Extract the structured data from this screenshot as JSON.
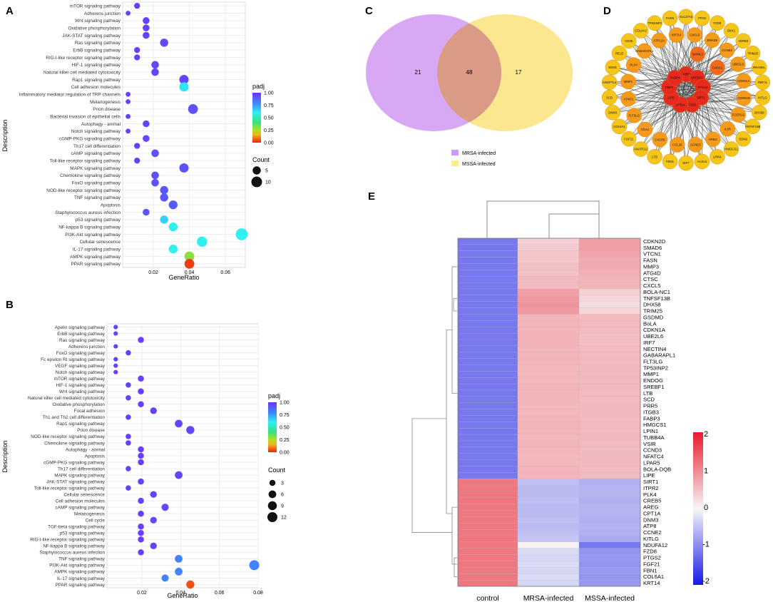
{
  "panel_labels": [
    "A",
    "B",
    "C",
    "D",
    "E"
  ],
  "legend_text": {
    "padj": "padj",
    "count": "Count"
  },
  "chart_data": [
    {
      "id": "A",
      "type": "scatter",
      "xlabel": "GeneRatio",
      "ylabel": "Description",
      "xlim": [
        0.003,
        0.071
      ],
      "xticks": [
        0.02,
        0.04,
        0.06
      ],
      "xtick_labels": [
        "0.02",
        "0.04",
        "0.06"
      ],
      "color_ticks": [
        "1.00",
        "0.75",
        "0.50",
        "0.25",
        "0.00"
      ],
      "count_ticks": [
        "5",
        "10"
      ],
      "count_values": [
        5,
        10
      ],
      "size_range": [
        1,
        13
      ],
      "categories": [
        "mTOR signaling pathway",
        "Adherens junction",
        "Wnt signaling pathway",
        "Oxidative phosphorylation",
        "JAK-STAT signaling pathway",
        "Ras signaling pathway",
        "ErbB signaling pathway",
        "RIG-I-like receptor signaling pathway",
        "HIF-1 signaling pathway",
        "Natural killer cell mediated cytotoxicity",
        "Rap1 signaling pathway",
        "Cell adhesion molecules",
        "Inflammatory mediator regulation of TRP channels",
        "Melanogenesis",
        "Prion disease",
        "Bacterial invasion of epithelial cells",
        "Autophagy - animal",
        "Notch signaling pathway",
        "cGMP-PKG signaling pathway",
        "Th17 cell differentiation",
        "cAMP signaling pathway",
        "Toll-like receptor signaling pathway",
        "MAPK signaling pathway",
        "Chemokine signaling pathway",
        "FoxO signaling pathway",
        "NOD-like receptor signaling pathway",
        "TNF signaling pathway",
        "Apoptosis",
        "Staphylococcus aureus infection",
        "p53 signaling pathway",
        "NF-kappa B signaling pathway",
        "PI3K-Akt signaling pathway",
        "Cellular senescence",
        "IL-17 signaling pathway",
        "AMPK signaling pathway",
        "PPAR signaling pathway"
      ],
      "gene_ratio": [
        0.011,
        0.006,
        0.016,
        0.016,
        0.016,
        0.026,
        0.011,
        0.011,
        0.021,
        0.021,
        0.037,
        0.037,
        0.006,
        0.006,
        0.042,
        0.006,
        0.016,
        0.006,
        0.016,
        0.011,
        0.021,
        0.011,
        0.037,
        0.021,
        0.021,
        0.026,
        0.026,
        0.031,
        0.016,
        0.026,
        0.031,
        0.069,
        0.047,
        0.031,
        0.04,
        0.04
      ],
      "count": [
        2,
        1,
        3,
        3,
        3,
        5,
        2,
        2,
        4,
        4,
        7,
        7,
        1,
        1,
        8,
        1,
        3,
        1,
        3,
        2,
        4,
        2,
        7,
        4,
        4,
        5,
        5,
        6,
        3,
        5,
        6,
        13,
        9,
        6,
        8,
        8
      ],
      "padj": [
        0.97,
        0.97,
        0.97,
        0.97,
        0.97,
        0.95,
        0.97,
        0.97,
        0.95,
        0.95,
        0.95,
        0.62,
        0.97,
        0.97,
        0.92,
        0.97,
        0.95,
        0.97,
        0.95,
        0.97,
        0.93,
        0.97,
        0.92,
        0.93,
        0.93,
        0.91,
        0.91,
        0.9,
        0.92,
        0.65,
        0.6,
        0.6,
        0.6,
        0.6,
        0.3,
        0.03
      ]
    },
    {
      "id": "B",
      "type": "scatter",
      "xlabel": "GeneRatio",
      "ylabel": "Description",
      "xlim": [
        0.002,
        0.08
      ],
      "xticks": [
        0.02,
        0.04,
        0.06,
        0.08
      ],
      "xtick_labels": [
        "0.02",
        "0.04",
        "0.06",
        "0.08"
      ],
      "color_ticks": [
        "1.00",
        "0.75",
        "0.50",
        "0.25",
        "0.00"
      ],
      "count_ticks": [
        "3",
        "6",
        "9",
        "12"
      ],
      "count_values": [
        3,
        6,
        9,
        12
      ],
      "size_range": [
        1,
        12
      ],
      "categories": [
        "Apelin signaling pathway",
        "ErbB signaling pathway",
        "Ras signaling pathway",
        "Adherens junction",
        "FoxO signaling pathway",
        "Fc epsilon RI signaling pathway",
        "VEGF signaling pathway",
        "Notch signaling pathway",
        "mTOR signaling pathway",
        "HIF-1 signaling pathway",
        "Wnt signaling pathway",
        "Natural killer cell mediated cytotoxicity",
        "Oxidative phosphorylation",
        "Focal adhesion",
        "Th1 and Th2 cell differentiation",
        "Rap1 signaling pathway",
        "Prion disease",
        "NOD-like receptor signaling pathway",
        "Chemokine signaling pathway",
        "Autophagy - animal",
        "Apoptosis",
        "cGMP-PKG signaling pathway",
        "Th17 cell differentiation",
        "MAPK signaling pathway",
        "JAK-STAT signaling pathway",
        "Toll-like receptor signaling pathway",
        "Cellular senescence",
        "Cell adhesion molecules",
        "cAMP signaling pathway",
        "Melanogenesis",
        "Cell cycle",
        "TGF-beta signaling pathway",
        "p53 signaling pathway",
        "RIG-I-like receptor signaling pathway",
        "NF-kappa B signaling pathway",
        "Staphylococcus aureus infection",
        "TNF signaling pathway",
        "PI3K-Akt signaling pathway",
        "AMPK signaling pathway",
        "IL-17 signaling pathway",
        "PPAR signaling pathway"
      ],
      "gene_ratio": [
        0.0065,
        0.0065,
        0.0195,
        0.0065,
        0.013,
        0.0065,
        0.0065,
        0.0065,
        0.0195,
        0.013,
        0.0195,
        0.013,
        0.0195,
        0.026,
        0.013,
        0.039,
        0.045,
        0.013,
        0.013,
        0.0195,
        0.0195,
        0.0195,
        0.013,
        0.039,
        0.0195,
        0.013,
        0.026,
        0.0195,
        0.032,
        0.0195,
        0.026,
        0.0195,
        0.0195,
        0.0195,
        0.026,
        0.0195,
        0.039,
        0.078,
        0.039,
        0.032,
        0.045
      ],
      "count": [
        1,
        1,
        3,
        1,
        2,
        1,
        1,
        1,
        3,
        2,
        3,
        2,
        3,
        4,
        2,
        6,
        7,
        2,
        2,
        3,
        3,
        3,
        2,
        6,
        3,
        2,
        4,
        3,
        5,
        3,
        4,
        3,
        3,
        3,
        4,
        3,
        6,
        12,
        6,
        5,
        7
      ],
      "padj": [
        0.97,
        0.97,
        0.97,
        0.97,
        0.97,
        0.97,
        0.97,
        0.97,
        0.97,
        0.97,
        0.97,
        0.97,
        0.97,
        0.97,
        0.97,
        0.95,
        0.95,
        0.97,
        0.97,
        0.97,
        0.97,
        0.97,
        0.97,
        0.95,
        0.97,
        0.97,
        0.95,
        0.97,
        0.95,
        0.97,
        0.95,
        0.97,
        0.97,
        0.97,
        0.95,
        0.97,
        0.8,
        0.8,
        0.8,
        0.8,
        0.05
      ]
    },
    {
      "id": "C",
      "type": "venn",
      "sets": [
        "MRSA-infected",
        "MSSA-infected"
      ],
      "left_only": 21,
      "intersection": 48,
      "right_only": 17,
      "labels": [
        "21",
        "48",
        "17"
      ],
      "colors": [
        "#cc99ff",
        "#ffee88"
      ]
    },
    {
      "id": "D",
      "type": "network",
      "nodes": [
        "SLC27A5",
        "PFN2",
        "FZD8",
        "DKK1",
        "ADRB3",
        "TRIM25",
        "RNASEL",
        "RBFJL",
        "KITLG",
        "DHX58",
        "TNFSF13B",
        "EDN2",
        "HMGCS1",
        "LPIN1",
        "ACSL5",
        "IRF7",
        "FBN1",
        "LTB",
        "ANAPC11",
        "FGF21",
        "SIRT1",
        "ITGB3",
        "COL6A1",
        "DNM3",
        "SCD",
        "PTGS2",
        "CPT1A",
        "FABP3",
        "ANGPTL4",
        "LIPE",
        "EDN1",
        "RELB",
        "CD36",
        "COL6A2",
        "TP53INP2",
        "SREBF1",
        "FASN",
        "CXCL6",
        "SMAD6",
        "CCNE2",
        "UBE2L3",
        "TIMP1",
        "CDKN1A",
        "CDKN2D",
        "FCER1G",
        "IL6R",
        "AREG",
        "CCND3",
        "CCL20",
        "CXCR5",
        "CD14",
        "FLT3LG",
        "AT4G3",
        "MMP1",
        "PLK4",
        "GABARAPL1",
        "ATP12A",
        "KRT14",
        "MAML3",
        "CHAC1"
      ],
      "hub_nodes": [
        "FABP3",
        "SREBF1",
        "PTGS2",
        "SIRT1",
        "ITGB3",
        "CPT1A",
        "LIPE",
        "TIMP1",
        "FABP4"
      ]
    },
    {
      "id": "E",
      "type": "heatmap",
      "columns": [
        "control",
        "MRSA-infected",
        "MSSA-infected"
      ],
      "rows": [
        "CDKN2D",
        "SMAD6",
        "VTCN1",
        "FASN",
        "MMP3",
        "ATG4D",
        "CTSC",
        "CXCL5",
        "BOLA-NC1",
        "TNFSF13B",
        "DHX58",
        "TRIM25",
        "GSDMD",
        "BoLA",
        "CDKN1A",
        "UBE2L6",
        "IRF7",
        "NECTIN4",
        "GABARAPL1",
        "FLT3LG",
        "TP53INP2",
        "MMP1",
        "ENDOG",
        "SREBF1",
        "LTB",
        "SCD",
        "PRR5",
        "ITGB3",
        "FABP3",
        "HMGCS1",
        "LPIN1",
        "TUBB4A",
        "VSIR",
        "CCND3",
        "NFATC4",
        "LPAR5",
        "BOLA-DQB",
        "LIPE",
        "SIRT1",
        "ITPR2",
        "PLK4",
        "CREB5",
        "AREG",
        "CPT1A",
        "DNM3",
        "ATP8",
        "CCNE2",
        "KITLG",
        "NDUFA12",
        "FZD8",
        "PTGS2",
        "FGF21",
        "FBN1",
        "COL6A1",
        "KRT14"
      ],
      "values": [
        [
          -1.15,
          0.35,
          0.8
        ],
        [
          -1.15,
          0.4,
          0.8
        ],
        [
          -1.15,
          0.45,
          0.75
        ],
        [
          -1.15,
          0.45,
          0.7
        ],
        [
          -1.15,
          0.5,
          0.7
        ],
        [
          -1.15,
          0.5,
          0.65
        ],
        [
          -1.15,
          0.55,
          0.6
        ],
        [
          -1.15,
          0.55,
          0.6
        ],
        [
          -1.15,
          0.8,
          0.35
        ],
        [
          -1.15,
          0.85,
          0.3
        ],
        [
          -1.15,
          0.9,
          0.25
        ],
        [
          -1.15,
          0.85,
          0.3
        ],
        [
          -1.15,
          0.6,
          0.55
        ],
        [
          -1.15,
          0.6,
          0.55
        ],
        [
          -1.15,
          0.6,
          0.55
        ],
        [
          -1.15,
          0.62,
          0.52
        ],
        [
          -1.15,
          0.62,
          0.52
        ],
        [
          -1.15,
          0.6,
          0.55
        ],
        [
          -1.15,
          0.6,
          0.55
        ],
        [
          -1.15,
          0.6,
          0.55
        ],
        [
          -1.15,
          0.58,
          0.57
        ],
        [
          -1.15,
          0.58,
          0.57
        ],
        [
          -1.15,
          0.58,
          0.57
        ],
        [
          -1.15,
          0.6,
          0.55
        ],
        [
          -1.15,
          0.6,
          0.55
        ],
        [
          -1.15,
          0.6,
          0.55
        ],
        [
          -1.15,
          0.58,
          0.57
        ],
        [
          -1.15,
          0.58,
          0.57
        ],
        [
          -1.15,
          0.6,
          0.55
        ],
        [
          -1.15,
          0.6,
          0.55
        ],
        [
          -1.15,
          0.6,
          0.55
        ],
        [
          -1.15,
          0.58,
          0.57
        ],
        [
          -1.15,
          0.6,
          0.55
        ],
        [
          -1.15,
          0.6,
          0.55
        ],
        [
          -1.15,
          0.58,
          0.57
        ],
        [
          -1.15,
          0.58,
          0.57
        ],
        [
          -1.15,
          0.6,
          0.55
        ],
        [
          -1.15,
          0.6,
          0.55
        ],
        [
          1.15,
          -0.5,
          -0.65
        ],
        [
          1.15,
          -0.55,
          -0.6
        ],
        [
          1.15,
          -0.55,
          -0.6
        ],
        [
          1.15,
          -0.5,
          -0.65
        ],
        [
          1.15,
          -0.55,
          -0.6
        ],
        [
          1.15,
          -0.55,
          -0.6
        ],
        [
          1.15,
          -0.5,
          -0.65
        ],
        [
          1.15,
          -0.55,
          -0.6
        ],
        [
          1.15,
          -0.5,
          -0.65
        ],
        [
          1.15,
          -0.45,
          -0.7
        ],
        [
          1.15,
          0.05,
          -1.15
        ],
        [
          1.15,
          -0.25,
          -0.9
        ],
        [
          1.15,
          -0.3,
          -0.85
        ],
        [
          1.15,
          -0.25,
          -0.9
        ],
        [
          1.15,
          -0.3,
          -0.85
        ],
        [
          1.15,
          -0.25,
          -0.9
        ],
        [
          1.15,
          -0.3,
          -0.85
        ]
      ],
      "scale_ticks": [
        "2",
        "1",
        "0",
        "-1",
        "-2"
      ],
      "scale_range": [
        -2,
        2
      ]
    }
  ]
}
